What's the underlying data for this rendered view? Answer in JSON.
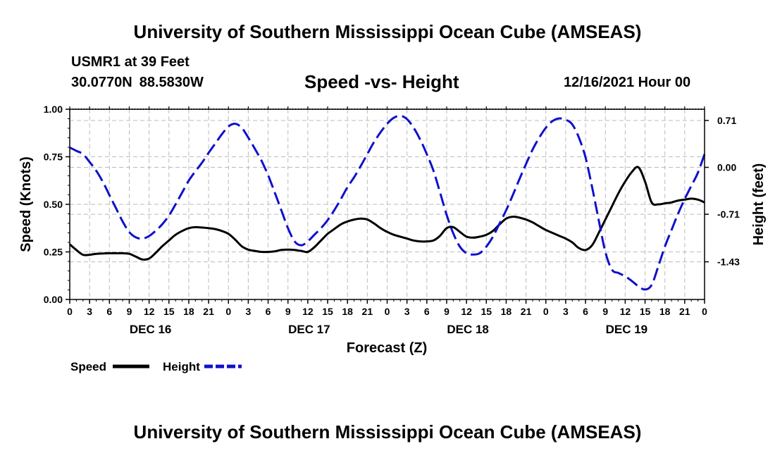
{
  "header": {
    "title": "University of Southern Mississippi Ocean Cube (AMSEAS)",
    "station": "USMR1 at 39 Feet",
    "lat": "30.0770N",
    "lon": "88.5830W",
    "chart_title": "Speed -vs- Height",
    "datetime": "12/16/2021 Hour 00"
  },
  "footer": {
    "title": "University of Southern Mississippi Ocean Cube (AMSEAS)"
  },
  "colors": {
    "speed": "#000000",
    "height": "#1010cc",
    "grid": "#bbbbbb"
  },
  "chart_data": {
    "type": "line",
    "title": "Speed -vs- Height",
    "xlabel": "Forecast (Z)",
    "ylabel_left": "Speed (Knots)",
    "ylabel_right": "Height (feet)",
    "x_hours": [
      0,
      1,
      2,
      3,
      4,
      5,
      6,
      7,
      8,
      9,
      10,
      11,
      12,
      13,
      14,
      15,
      16,
      17,
      18,
      19,
      20,
      21,
      22,
      23,
      24,
      25,
      26,
      27,
      28,
      29,
      30,
      31,
      32,
      33,
      34,
      35,
      36,
      37,
      38,
      39,
      40,
      41,
      42,
      43,
      44,
      45,
      46,
      47,
      48,
      49,
      50,
      51,
      52,
      53,
      54,
      55,
      56,
      57,
      58,
      59,
      60,
      61,
      62,
      63,
      64,
      65,
      66,
      67,
      68,
      69,
      70,
      71,
      72,
      73,
      74,
      75,
      76,
      77,
      78,
      79,
      80,
      81,
      82,
      83,
      84,
      85,
      86,
      87,
      88,
      89,
      90,
      91,
      92,
      93,
      94,
      95,
      96
    ],
    "x_tick_labels": [
      "0",
      "3",
      "6",
      "9",
      "12",
      "15",
      "18",
      "21",
      "0",
      "3",
      "6",
      "9",
      "12",
      "15",
      "18",
      "21",
      "0",
      "3",
      "6",
      "9",
      "12",
      "15",
      "18",
      "21",
      "0",
      "3",
      "6",
      "9",
      "12",
      "15",
      "18",
      "21",
      "0"
    ],
    "date_labels": [
      {
        "label": "DEC 16",
        "hour": 12
      },
      {
        "label": "DEC 17",
        "hour": 36
      },
      {
        "label": "DEC 18",
        "hour": 60
      },
      {
        "label": "DEC 19",
        "hour": 84
      }
    ],
    "left_axis": {
      "min": 0,
      "max": 1,
      "ticks": [
        "0.00",
        "0.25",
        "0.50",
        "0.75",
        "1.00"
      ],
      "tick_values": [
        0,
        0.25,
        0.5,
        0.75,
        1.0
      ]
    },
    "right_axis": {
      "min": -2.0,
      "max": 0.88,
      "ticks": [
        "0.71",
        "0.00",
        "-0.71",
        "-1.43"
      ],
      "tick_values": [
        0.71,
        0.0,
        -0.71,
        -1.43
      ]
    },
    "series": [
      {
        "name": "Speed",
        "axis": "left",
        "values": [
          0.29,
          0.26,
          0.235,
          0.235,
          0.24,
          0.242,
          0.243,
          0.243,
          0.243,
          0.24,
          0.225,
          0.21,
          0.215,
          0.245,
          0.28,
          0.31,
          0.34,
          0.36,
          0.375,
          0.38,
          0.378,
          0.375,
          0.37,
          0.36,
          0.345,
          0.315,
          0.28,
          0.262,
          0.255,
          0.25,
          0.25,
          0.253,
          0.26,
          0.262,
          0.26,
          0.255,
          0.25,
          0.275,
          0.31,
          0.345,
          0.37,
          0.395,
          0.41,
          0.42,
          0.425,
          0.42,
          0.4,
          0.375,
          0.355,
          0.34,
          0.33,
          0.32,
          0.31,
          0.305,
          0.305,
          0.31,
          0.335,
          0.375,
          0.38,
          0.355,
          0.33,
          0.325,
          0.33,
          0.34,
          0.36,
          0.395,
          0.425,
          0.435,
          0.43,
          0.42,
          0.405,
          0.385,
          0.365,
          0.35,
          0.335,
          0.32,
          0.3,
          0.27,
          0.26,
          0.285,
          0.35,
          0.42,
          0.49,
          0.56,
          0.62,
          0.67,
          0.695,
          0.62,
          0.51,
          0.5,
          0.505,
          0.51,
          0.52,
          0.525,
          0.53,
          0.525,
          0.51
        ]
      },
      {
        "name": "Height",
        "axis": "right",
        "values": [
          0.3,
          0.25,
          0.2,
          0.08,
          -0.05,
          -0.22,
          -0.42,
          -0.62,
          -0.82,
          -0.98,
          -1.06,
          -1.08,
          -1.04,
          -0.96,
          -0.86,
          -0.73,
          -0.56,
          -0.38,
          -0.2,
          -0.06,
          0.07,
          0.22,
          0.36,
          0.5,
          0.62,
          0.66,
          0.6,
          0.45,
          0.28,
          0.1,
          -0.12,
          -0.38,
          -0.65,
          -0.92,
          -1.12,
          -1.18,
          -1.12,
          -1.02,
          -0.92,
          -0.8,
          -0.65,
          -0.48,
          -0.3,
          -0.15,
          0.02,
          0.2,
          0.38,
          0.53,
          0.66,
          0.75,
          0.78,
          0.73,
          0.6,
          0.42,
          0.2,
          -0.05,
          -0.38,
          -0.72,
          -1.0,
          -1.2,
          -1.3,
          -1.32,
          -1.3,
          -1.2,
          -1.05,
          -0.85,
          -0.65,
          -0.42,
          -0.18,
          0.05,
          0.27,
          0.45,
          0.6,
          0.7,
          0.74,
          0.72,
          0.65,
          0.45,
          0.15,
          -0.3,
          -0.8,
          -1.28,
          -1.55,
          -1.6,
          -1.65,
          -1.72,
          -1.8,
          -1.85,
          -1.78,
          -1.5,
          -1.2,
          -0.95,
          -0.7,
          -0.48,
          -0.28,
          -0.08,
          0.2
        ]
      }
    ],
    "legend": [
      {
        "label": "Speed",
        "series": "Speed"
      },
      {
        "label": "Height",
        "series": "Height"
      }
    ]
  }
}
